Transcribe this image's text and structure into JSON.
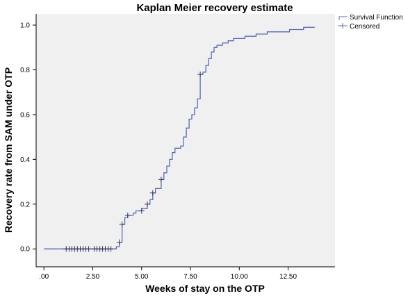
{
  "chart_data": {
    "type": "line",
    "title": "Kaplan Meier recovery estimate",
    "xlabel": "Weeks of stay on the OTP",
    "ylabel": "Recovery rate from SAM under OTP",
    "xlim": [
      -0.4,
      14.9
    ],
    "ylim": [
      -0.08,
      1.05
    ],
    "x_ticks": [
      0,
      2.5,
      5,
      7.5,
      10,
      12.5
    ],
    "x_tick_labels": [
      ".00",
      "2.50",
      "5.00",
      "7.50",
      "10.00",
      "12.50"
    ],
    "y_ticks": [
      0,
      0.2,
      0.4,
      0.6,
      0.8,
      1.0
    ],
    "y_tick_labels": [
      "0.0",
      "0.2",
      "0.4",
      "0.6",
      "0.8",
      "1.0"
    ],
    "grid": false,
    "legend_position": "top-right",
    "colors": {
      "series": "#5b6bb7",
      "plot_background": "#f0f0f0",
      "axis": "#000000"
    },
    "series": [
      {
        "name": "Survival Function",
        "step_points": [
          [
            0.0,
            0.0
          ],
          [
            3.71,
            0.0
          ],
          [
            3.71,
            0.01
          ],
          [
            3.86,
            0.01
          ],
          [
            3.86,
            0.03
          ],
          [
            4.0,
            0.03
          ],
          [
            4.0,
            0.11
          ],
          [
            4.14,
            0.11
          ],
          [
            4.14,
            0.14
          ],
          [
            4.29,
            0.14
          ],
          [
            4.29,
            0.15
          ],
          [
            4.57,
            0.15
          ],
          [
            4.57,
            0.16
          ],
          [
            4.71,
            0.16
          ],
          [
            4.71,
            0.17
          ],
          [
            5.0,
            0.17
          ],
          [
            5.0,
            0.18
          ],
          [
            5.29,
            0.18
          ],
          [
            5.29,
            0.2
          ],
          [
            5.43,
            0.2
          ],
          [
            5.43,
            0.22
          ],
          [
            5.57,
            0.22
          ],
          [
            5.57,
            0.25
          ],
          [
            5.71,
            0.25
          ],
          [
            5.71,
            0.27
          ],
          [
            6.0,
            0.27
          ],
          [
            6.0,
            0.31
          ],
          [
            6.14,
            0.31
          ],
          [
            6.14,
            0.34
          ],
          [
            6.29,
            0.34
          ],
          [
            6.29,
            0.37
          ],
          [
            6.43,
            0.37
          ],
          [
            6.43,
            0.4
          ],
          [
            6.57,
            0.4
          ],
          [
            6.57,
            0.43
          ],
          [
            6.71,
            0.43
          ],
          [
            6.71,
            0.45
          ],
          [
            7.0,
            0.45
          ],
          [
            7.0,
            0.46
          ],
          [
            7.14,
            0.46
          ],
          [
            7.14,
            0.5
          ],
          [
            7.29,
            0.5
          ],
          [
            7.29,
            0.54
          ],
          [
            7.43,
            0.54
          ],
          [
            7.43,
            0.58
          ],
          [
            7.57,
            0.58
          ],
          [
            7.57,
            0.6
          ],
          [
            7.71,
            0.6
          ],
          [
            7.71,
            0.63
          ],
          [
            7.86,
            0.63
          ],
          [
            7.86,
            0.67
          ],
          [
            8.0,
            0.67
          ],
          [
            8.0,
            0.78
          ],
          [
            8.14,
            0.78
          ],
          [
            8.14,
            0.79
          ],
          [
            8.29,
            0.79
          ],
          [
            8.29,
            0.82
          ],
          [
            8.43,
            0.82
          ],
          [
            8.43,
            0.85
          ],
          [
            8.57,
            0.85
          ],
          [
            8.57,
            0.88
          ],
          [
            8.71,
            0.88
          ],
          [
            8.71,
            0.9
          ],
          [
            8.86,
            0.9
          ],
          [
            8.86,
            0.91
          ],
          [
            9.14,
            0.91
          ],
          [
            9.14,
            0.92
          ],
          [
            9.43,
            0.92
          ],
          [
            9.43,
            0.93
          ],
          [
            9.71,
            0.93
          ],
          [
            9.71,
            0.94
          ],
          [
            10.29,
            0.94
          ],
          [
            10.29,
            0.95
          ],
          [
            10.86,
            0.95
          ],
          [
            10.86,
            0.96
          ],
          [
            11.43,
            0.96
          ],
          [
            11.43,
            0.97
          ],
          [
            12.57,
            0.97
          ],
          [
            12.57,
            0.98
          ],
          [
            13.29,
            0.98
          ],
          [
            13.29,
            0.99
          ],
          [
            13.86,
            0.99
          ]
        ]
      },
      {
        "name": "Censored",
        "points": [
          [
            1.14,
            0.0
          ],
          [
            1.29,
            0.0
          ],
          [
            1.43,
            0.0
          ],
          [
            1.57,
            0.0
          ],
          [
            1.71,
            0.0
          ],
          [
            1.86,
            0.0
          ],
          [
            2.0,
            0.0
          ],
          [
            2.14,
            0.0
          ],
          [
            2.29,
            0.0
          ],
          [
            2.57,
            0.0
          ],
          [
            2.71,
            0.0
          ],
          [
            2.86,
            0.0
          ],
          [
            3.0,
            0.0
          ],
          [
            3.14,
            0.0
          ],
          [
            3.29,
            0.0
          ],
          [
            3.43,
            0.0
          ],
          [
            3.86,
            0.03
          ],
          [
            4.0,
            0.11
          ],
          [
            4.29,
            0.15
          ],
          [
            5.0,
            0.17
          ],
          [
            5.29,
            0.2
          ],
          [
            5.57,
            0.25
          ],
          [
            6.0,
            0.31
          ],
          [
            8.0,
            0.78
          ]
        ]
      }
    ]
  }
}
